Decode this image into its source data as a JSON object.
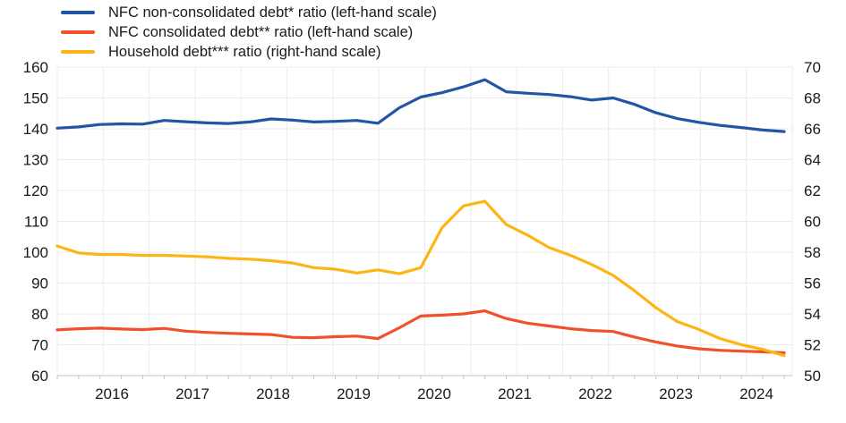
{
  "chart": {
    "background": "#ffffff",
    "text_color": "#1a1a1a",
    "gridline_color": "#ebebeb",
    "axis_color": "#c4c4c4"
  },
  "chart_data": {
    "type": "line",
    "title": "",
    "xlabel": "",
    "ylabel_left": "",
    "ylabel_right": "",
    "grid": true,
    "legend_position": "top-left",
    "x_tick_labels": [
      "2016",
      "2017",
      "2018",
      "2019",
      "2020",
      "2021",
      "2022",
      "2023",
      "2024"
    ],
    "x": [
      2016.0,
      2016.25,
      2016.5,
      2016.75,
      2017.0,
      2017.25,
      2017.5,
      2017.75,
      2018.0,
      2018.25,
      2018.5,
      2018.75,
      2019.0,
      2019.25,
      2019.5,
      2019.75,
      2020.0,
      2020.25,
      2020.5,
      2020.75,
      2021.0,
      2021.25,
      2021.5,
      2021.75,
      2022.0,
      2022.25,
      2022.5,
      2022.75,
      2023.0,
      2023.25,
      2023.5,
      2023.75,
      2024.0,
      2024.25,
      2024.5
    ],
    "left_axis": {
      "min": 60,
      "max": 160,
      "step": 10,
      "tick_labels": [
        "160",
        "150",
        "140",
        "130",
        "120",
        "110",
        "100",
        "90",
        "80",
        "70",
        "60"
      ]
    },
    "right_axis": {
      "min": 50,
      "max": 70,
      "step": 2,
      "tick_labels": [
        "70",
        "68",
        "66",
        "64",
        "62",
        "60",
        "58",
        "56",
        "54",
        "52",
        "50"
      ]
    },
    "series": [
      {
        "name": "NFC non-consolidated debt* ratio (left-hand scale)",
        "axis": "left",
        "color": "#2255A4",
        "values": [
          140.2,
          140.6,
          141.4,
          141.6,
          141.5,
          142.7,
          142.3,
          141.9,
          141.7,
          142.2,
          143.2,
          142.8,
          142.2,
          142.4,
          142.7,
          141.8,
          146.8,
          150.3,
          151.7,
          153.6,
          155.9,
          152.0,
          151.5,
          151.1,
          150.4,
          149.3,
          150.0,
          147.9,
          145.2,
          143.3,
          142.1,
          141.1,
          140.4,
          139.6,
          139.1
        ]
      },
      {
        "name": "NFC consolidated debt** ratio (left-hand scale)",
        "axis": "left",
        "color": "#F0512A",
        "values": [
          74.8,
          75.2,
          75.4,
          75.1,
          74.9,
          75.3,
          74.4,
          74.0,
          73.7,
          73.5,
          73.3,
          72.4,
          72.3,
          72.6,
          72.8,
          72.0,
          75.5,
          79.3,
          79.6,
          80.0,
          81.0,
          78.5,
          77.0,
          76.1,
          75.2,
          74.6,
          74.3,
          72.5,
          70.9,
          69.6,
          68.7,
          68.2,
          67.9,
          67.7,
          67.4
        ]
      },
      {
        "name": "Household debt*** ratio (right-hand scale)",
        "axis": "right",
        "color": "#FDB515",
        "values": [
          58.4,
          57.95,
          57.85,
          57.85,
          57.8,
          57.8,
          57.75,
          57.7,
          57.6,
          57.55,
          57.45,
          57.3,
          57.0,
          56.9,
          56.65,
          56.85,
          56.6,
          57.0,
          59.6,
          61.0,
          61.3,
          59.8,
          59.1,
          58.3,
          57.8,
          57.2,
          56.5,
          55.5,
          54.4,
          53.5,
          53.0,
          52.4,
          52.0,
          51.7,
          51.3
        ]
      }
    ]
  }
}
